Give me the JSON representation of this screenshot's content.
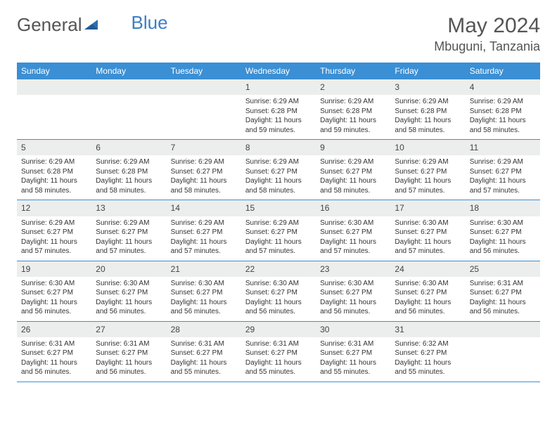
{
  "logo": {
    "text_left": "General",
    "text_right": "Blue"
  },
  "title": "May 2024",
  "location": "Mbuguni, Tanzania",
  "colors": {
    "header_bg": "#3b8fd4",
    "header_text": "#ffffff",
    "daynum_bg": "#eceded",
    "border": "#3b8fd4",
    "body_text": "#333333",
    "title_text": "#555555"
  },
  "dow": [
    "Sunday",
    "Monday",
    "Tuesday",
    "Wednesday",
    "Thursday",
    "Friday",
    "Saturday"
  ],
  "weeks": [
    [
      {
        "day": "",
        "lines": []
      },
      {
        "day": "",
        "lines": []
      },
      {
        "day": "",
        "lines": []
      },
      {
        "day": "1",
        "lines": [
          "Sunrise: 6:29 AM",
          "Sunset: 6:28 PM",
          "Daylight: 11 hours and 59 minutes."
        ]
      },
      {
        "day": "2",
        "lines": [
          "Sunrise: 6:29 AM",
          "Sunset: 6:28 PM",
          "Daylight: 11 hours and 59 minutes."
        ]
      },
      {
        "day": "3",
        "lines": [
          "Sunrise: 6:29 AM",
          "Sunset: 6:28 PM",
          "Daylight: 11 hours and 58 minutes."
        ]
      },
      {
        "day": "4",
        "lines": [
          "Sunrise: 6:29 AM",
          "Sunset: 6:28 PM",
          "Daylight: 11 hours and 58 minutes."
        ]
      }
    ],
    [
      {
        "day": "5",
        "lines": [
          "Sunrise: 6:29 AM",
          "Sunset: 6:28 PM",
          "Daylight: 11 hours and 58 minutes."
        ]
      },
      {
        "day": "6",
        "lines": [
          "Sunrise: 6:29 AM",
          "Sunset: 6:28 PM",
          "Daylight: 11 hours and 58 minutes."
        ]
      },
      {
        "day": "7",
        "lines": [
          "Sunrise: 6:29 AM",
          "Sunset: 6:27 PM",
          "Daylight: 11 hours and 58 minutes."
        ]
      },
      {
        "day": "8",
        "lines": [
          "Sunrise: 6:29 AM",
          "Sunset: 6:27 PM",
          "Daylight: 11 hours and 58 minutes."
        ]
      },
      {
        "day": "9",
        "lines": [
          "Sunrise: 6:29 AM",
          "Sunset: 6:27 PM",
          "Daylight: 11 hours and 58 minutes."
        ]
      },
      {
        "day": "10",
        "lines": [
          "Sunrise: 6:29 AM",
          "Sunset: 6:27 PM",
          "Daylight: 11 hours and 57 minutes."
        ]
      },
      {
        "day": "11",
        "lines": [
          "Sunrise: 6:29 AM",
          "Sunset: 6:27 PM",
          "Daylight: 11 hours and 57 minutes."
        ]
      }
    ],
    [
      {
        "day": "12",
        "lines": [
          "Sunrise: 6:29 AM",
          "Sunset: 6:27 PM",
          "Daylight: 11 hours and 57 minutes."
        ]
      },
      {
        "day": "13",
        "lines": [
          "Sunrise: 6:29 AM",
          "Sunset: 6:27 PM",
          "Daylight: 11 hours and 57 minutes."
        ]
      },
      {
        "day": "14",
        "lines": [
          "Sunrise: 6:29 AM",
          "Sunset: 6:27 PM",
          "Daylight: 11 hours and 57 minutes."
        ]
      },
      {
        "day": "15",
        "lines": [
          "Sunrise: 6:29 AM",
          "Sunset: 6:27 PM",
          "Daylight: 11 hours and 57 minutes."
        ]
      },
      {
        "day": "16",
        "lines": [
          "Sunrise: 6:30 AM",
          "Sunset: 6:27 PM",
          "Daylight: 11 hours and 57 minutes."
        ]
      },
      {
        "day": "17",
        "lines": [
          "Sunrise: 6:30 AM",
          "Sunset: 6:27 PM",
          "Daylight: 11 hours and 57 minutes."
        ]
      },
      {
        "day": "18",
        "lines": [
          "Sunrise: 6:30 AM",
          "Sunset: 6:27 PM",
          "Daylight: 11 hours and 56 minutes."
        ]
      }
    ],
    [
      {
        "day": "19",
        "lines": [
          "Sunrise: 6:30 AM",
          "Sunset: 6:27 PM",
          "Daylight: 11 hours and 56 minutes."
        ]
      },
      {
        "day": "20",
        "lines": [
          "Sunrise: 6:30 AM",
          "Sunset: 6:27 PM",
          "Daylight: 11 hours and 56 minutes."
        ]
      },
      {
        "day": "21",
        "lines": [
          "Sunrise: 6:30 AM",
          "Sunset: 6:27 PM",
          "Daylight: 11 hours and 56 minutes."
        ]
      },
      {
        "day": "22",
        "lines": [
          "Sunrise: 6:30 AM",
          "Sunset: 6:27 PM",
          "Daylight: 11 hours and 56 minutes."
        ]
      },
      {
        "day": "23",
        "lines": [
          "Sunrise: 6:30 AM",
          "Sunset: 6:27 PM",
          "Daylight: 11 hours and 56 minutes."
        ]
      },
      {
        "day": "24",
        "lines": [
          "Sunrise: 6:30 AM",
          "Sunset: 6:27 PM",
          "Daylight: 11 hours and 56 minutes."
        ]
      },
      {
        "day": "25",
        "lines": [
          "Sunrise: 6:31 AM",
          "Sunset: 6:27 PM",
          "Daylight: 11 hours and 56 minutes."
        ]
      }
    ],
    [
      {
        "day": "26",
        "lines": [
          "Sunrise: 6:31 AM",
          "Sunset: 6:27 PM",
          "Daylight: 11 hours and 56 minutes."
        ]
      },
      {
        "day": "27",
        "lines": [
          "Sunrise: 6:31 AM",
          "Sunset: 6:27 PM",
          "Daylight: 11 hours and 56 minutes."
        ]
      },
      {
        "day": "28",
        "lines": [
          "Sunrise: 6:31 AM",
          "Sunset: 6:27 PM",
          "Daylight: 11 hours and 55 minutes."
        ]
      },
      {
        "day": "29",
        "lines": [
          "Sunrise: 6:31 AM",
          "Sunset: 6:27 PM",
          "Daylight: 11 hours and 55 minutes."
        ]
      },
      {
        "day": "30",
        "lines": [
          "Sunrise: 6:31 AM",
          "Sunset: 6:27 PM",
          "Daylight: 11 hours and 55 minutes."
        ]
      },
      {
        "day": "31",
        "lines": [
          "Sunrise: 6:32 AM",
          "Sunset: 6:27 PM",
          "Daylight: 11 hours and 55 minutes."
        ]
      },
      {
        "day": "",
        "lines": []
      }
    ]
  ]
}
